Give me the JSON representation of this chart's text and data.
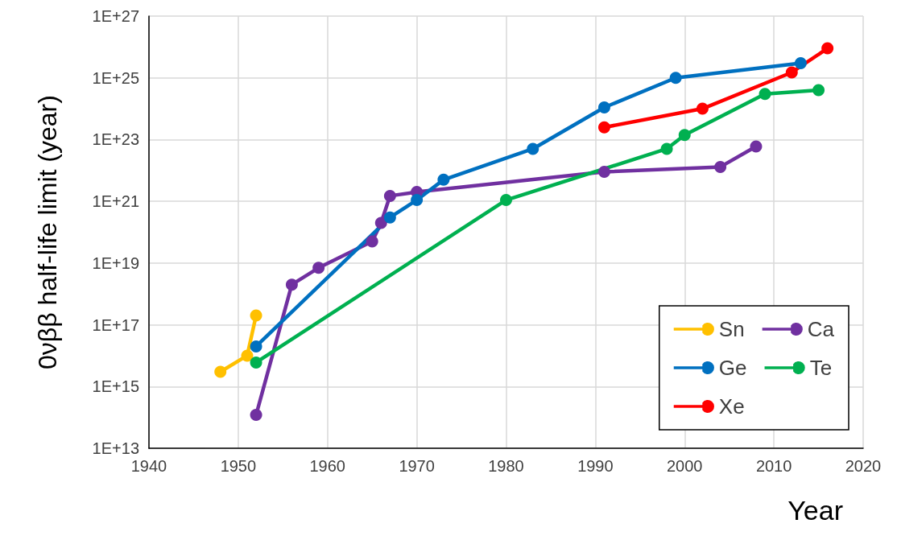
{
  "chart_data": {
    "type": "line",
    "xlabel": "Year",
    "ylabel": "0νββ half-life limit (year)",
    "log": "y",
    "grid": true,
    "legend": "bottom right",
    "marker": "circle",
    "line_style": "solid",
    "xlim": [
      1940,
      2020
    ],
    "xticks": [
      1940,
      1950,
      1960,
      1970,
      1980,
      1990,
      2000,
      2010,
      2020
    ],
    "ylim": [
      10000000000000.0,
      1e+27
    ],
    "yticks": [
      {
        "value": 10000000000000.0,
        "label": "1E+13"
      },
      {
        "value": 1000000000000000.0,
        "label": "1E+15"
      },
      {
        "value": 1e+17,
        "label": "1E+17"
      },
      {
        "value": 1e+19,
        "label": "1E+19"
      },
      {
        "value": 1e+21,
        "label": "1E+21"
      },
      {
        "value": 1e+23,
        "label": "1E+23"
      },
      {
        "value": 1e+25,
        "label": "1E+25"
      },
      {
        "value": 1e+27,
        "label": "1E+27"
      }
    ],
    "series": [
      {
        "name": "Sn",
        "color": "#ffc000",
        "x": [
          1948,
          1951,
          1952
        ],
        "values": [
          3000000000000000.0,
          1e+16,
          2e+17
        ]
      },
      {
        "name": "Ca",
        "color": "#7030a0",
        "x": [
          1952,
          1956,
          1959,
          1965,
          1966,
          1967,
          1970,
          1991,
          2004,
          2008
        ],
        "values": [
          120000000000000.0,
          2e+18,
          7e+18,
          5e+19,
          2e+20,
          1.5e+21,
          2e+21,
          9e+21,
          1.3e+22,
          6e+22
        ]
      },
      {
        "name": "Ge",
        "color": "#0070c0",
        "x": [
          1952,
          1967,
          1970,
          1973,
          1983,
          1991,
          1999,
          2013
        ],
        "values": [
          2e+16,
          3e+20,
          1.1e+21,
          5e+21,
          5e+22,
          1.1e+24,
          1e+25,
          3e+25
        ]
      },
      {
        "name": "Te",
        "color": "#00b050",
        "x": [
          1952,
          1980,
          1998,
          2000,
          2009,
          2015
        ],
        "values": [
          6000000000000000.0,
          1.1e+21,
          5e+22,
          1.4e+23,
          3e+24,
          4e+24
        ]
      },
      {
        "name": "Xe",
        "color": "#ff0000",
        "x": [
          1991,
          2002,
          2012,
          2016
        ],
        "values": [
          2.5e+23,
          1e+24,
          1.5e+25,
          9e+25
        ]
      }
    ]
  }
}
